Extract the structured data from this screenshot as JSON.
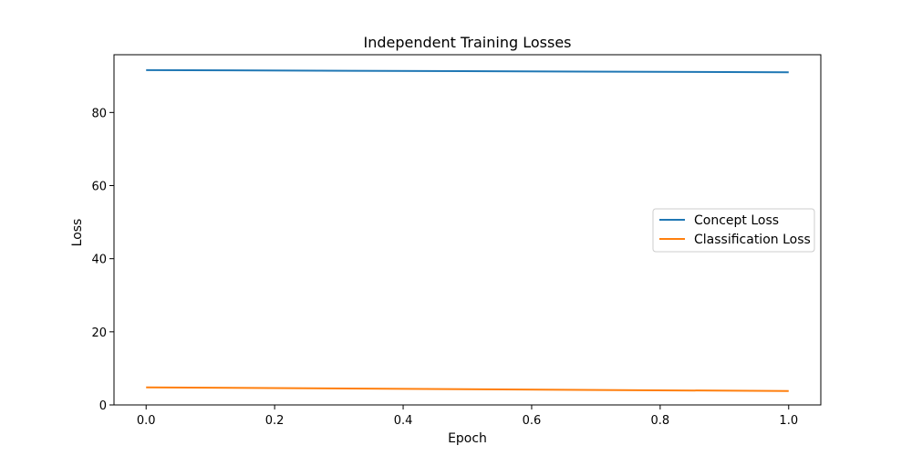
{
  "chart_data": {
    "type": "line",
    "title": "Independent Training Losses",
    "xlabel": "Epoch",
    "ylabel": "Loss",
    "xlim": [
      -0.05,
      1.05
    ],
    "ylim": [
      0,
      95.8
    ],
    "xticks": [
      0.0,
      0.2,
      0.4,
      0.6,
      0.8,
      1.0
    ],
    "xtick_labels": [
      "0.0",
      "0.2",
      "0.4",
      "0.6",
      "0.8",
      "1.0"
    ],
    "yticks": [
      0,
      20,
      40,
      60,
      80
    ],
    "ytick_labels": [
      "0",
      "20",
      "40",
      "60",
      "80"
    ],
    "grid": false,
    "legend_position": "center-right",
    "series": [
      {
        "name": "Concept Loss",
        "color": "#1f77b4",
        "x": [
          0,
          1
        ],
        "y": [
          91.6,
          91.0
        ]
      },
      {
        "name": "Classification Loss",
        "color": "#ff7f0e",
        "x": [
          0,
          1
        ],
        "y": [
          4.8,
          3.8
        ]
      }
    ]
  }
}
